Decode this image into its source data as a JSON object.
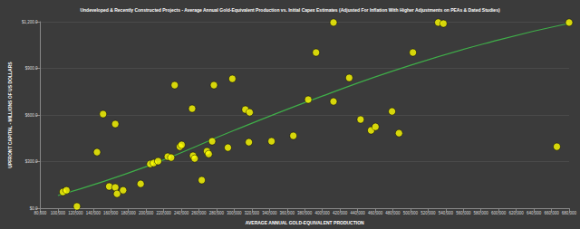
{
  "chart_data": {
    "type": "scatter",
    "title": "Undeveloped & Recently Constructed Projects - Average Annual Gold-Equivalent Production vs. Initial Capex Estimates (Adjusted For Inflation With Higher Adjustments on PEAs & Dated Studies)",
    "x_label": "AVERAGE ANNUAL GOLD-EQUIVALENT PRODUCTION",
    "y_label": "UPFRONT CAPITAL - MILLIONS OF US DOLLARS",
    "xlim": [
      80000,
      680000
    ],
    "ylim": [
      0,
      1200
    ],
    "xticks": [
      {
        "value": 80000,
        "label": "80,000"
      },
      {
        "value": 100000,
        "label": "100,000"
      },
      {
        "value": 120000,
        "label": "120,000"
      },
      {
        "value": 140000,
        "label": "140,000"
      },
      {
        "value": 160000,
        "label": "160,000"
      },
      {
        "value": 180000,
        "label": "180,000"
      },
      {
        "value": 200000,
        "label": "200,000"
      },
      {
        "value": 220000,
        "label": "220,000"
      },
      {
        "value": 240000,
        "label": "240,000"
      },
      {
        "value": 260000,
        "label": "260,000"
      },
      {
        "value": 280000,
        "label": "280,000"
      },
      {
        "value": 300000,
        "label": "300,000"
      },
      {
        "value": 320000,
        "label": "320,000"
      },
      {
        "value": 340000,
        "label": "340,000"
      },
      {
        "value": 360000,
        "label": "360,000"
      },
      {
        "value": 380000,
        "label": "380,000"
      },
      {
        "value": 400000,
        "label": "400,000"
      },
      {
        "value": 420000,
        "label": "420,000"
      },
      {
        "value": 440000,
        "label": "440,000"
      },
      {
        "value": 460000,
        "label": "460,000"
      },
      {
        "value": 480000,
        "label": "480,000"
      },
      {
        "value": 500000,
        "label": "500,000"
      },
      {
        "value": 520000,
        "label": "520,000"
      },
      {
        "value": 540000,
        "label": "540,000"
      },
      {
        "value": 560000,
        "label": "560,000"
      },
      {
        "value": 580000,
        "label": "580,000"
      },
      {
        "value": 600000,
        "label": "600,000"
      },
      {
        "value": 620000,
        "label": "620,000"
      },
      {
        "value": 640000,
        "label": "640,000"
      },
      {
        "value": 660000,
        "label": "660,000"
      },
      {
        "value": 680000,
        "label": "680,000"
      }
    ],
    "yticks": [
      {
        "value": 0,
        "label": "$0.0"
      },
      {
        "value": 300,
        "label": "$300.0"
      },
      {
        "value": 600,
        "label": "$600.0"
      },
      {
        "value": 900,
        "label": "$900.0"
      },
      {
        "value": 1200,
        "label": "$1,200.0"
      }
    ],
    "grid": true,
    "series": [
      {
        "type": "scatter",
        "color": "#ffff00",
        "marker": "circle",
        "x": [
          105700,
          109700,
          121600,
          144400,
          151300,
          158200,
          165100,
          165100,
          167100,
          174000,
          193900,
          204800,
          208700,
          213700,
          224600,
          228500,
          232500,
          238400,
          240400,
          252300,
          253300,
          255200,
          263200,
          269100,
          271100,
          275000,
          277000,
          292900,
          297900,
          312700,
          316700,
          317600,
          342400,
          367100,
          384000,
          392900,
          412700,
          412700,
          430500,
          443400,
          455300,
          460300,
          479100,
          487000,
          502800,
          531500,
          537400,
          666100,
          680000
        ],
        "values": [
          105,
          116,
          12,
          361,
          606,
          140,
          542,
          134,
          93,
          116,
          157,
          285,
          291,
          303,
          332,
          326,
          792,
          396,
          408,
          641,
          338,
          320,
          181,
          367,
          349,
          431,
          792,
          390,
          833,
          635,
          425,
          617,
          431,
          466,
          699,
          1002,
          687,
          1195,
          839,
          571,
          501,
          524,
          623,
          483,
          1002,
          1195,
          1188,
          396,
          1195
        ]
      },
      {
        "type": "line",
        "color": "#3fae49",
        "line_style": "solid",
        "x": [
          100000,
          200000,
          300000,
          400000,
          500000,
          600000,
          680000
        ],
        "values": [
          82,
          268,
          501,
          722,
          920,
          1083,
          1190
        ]
      }
    ]
  }
}
